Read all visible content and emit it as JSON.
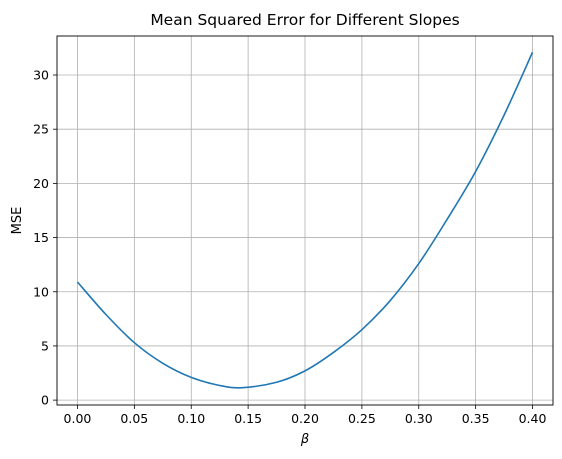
{
  "chart_data": {
    "type": "line",
    "title": "Mean Squared Error for Different Slopes",
    "xlabel": "β",
    "ylabel": "MSE",
    "xlim": [
      -0.018,
      0.418
    ],
    "ylim": [
      -0.45,
      33.6
    ],
    "xticks": [
      0.0,
      0.05,
      0.1,
      0.15,
      0.2,
      0.25,
      0.3,
      0.35,
      0.4
    ],
    "xtick_labels": [
      "0.00",
      "0.05",
      "0.10",
      "0.15",
      "0.20",
      "0.25",
      "0.30",
      "0.35",
      "0.40"
    ],
    "yticks": [
      0,
      5,
      10,
      15,
      20,
      25,
      30
    ],
    "ytick_labels": [
      "0",
      "5",
      "10",
      "15",
      "20",
      "25",
      "30"
    ],
    "grid": true,
    "legend": "none",
    "line_color": "#1f77b4",
    "series": [
      {
        "x": [
          0.0,
          0.025,
          0.05,
          0.075,
          0.1,
          0.125,
          0.145,
          0.175,
          0.2,
          0.225,
          0.25,
          0.275,
          0.3,
          0.325,
          0.35,
          0.375,
          0.4
        ],
        "values": [
          10.9,
          7.9,
          5.3,
          3.4,
          2.1,
          1.35,
          1.15,
          1.65,
          2.7,
          4.4,
          6.5,
          9.2,
          12.6,
          16.7,
          21.1,
          26.3,
          32.1
        ]
      }
    ]
  }
}
